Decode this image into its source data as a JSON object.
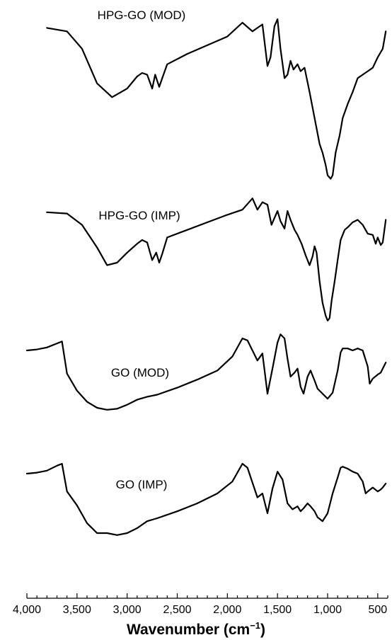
{
  "chart_data": {
    "type": "line",
    "title": "",
    "xlabel": "Wavenumber (cm",
    "xlabel_sup": "−1",
    "xlabel_close": ")",
    "ylabel": "",
    "x_reversed": true,
    "xlim": [
      4000,
      400
    ],
    "xticks": [
      {
        "value": 4000,
        "label": "4,000"
      },
      {
        "value": 3500,
        "label": "3,500"
      },
      {
        "value": 3000,
        "label": "3,000"
      },
      {
        "value": 2500,
        "label": "2,500"
      },
      {
        "value": 2000,
        "label": "2,000"
      },
      {
        "value": 1500,
        "label": "1,500"
      },
      {
        "value": 1000,
        "label": "1,000"
      },
      {
        "value": 500,
        "label": "500"
      }
    ],
    "y_units": "relative transmittance (offset traces, 0-100)",
    "grid": false,
    "legend": "none (series labeled directly above traces)",
    "series": [
      {
        "name": "HPG-GO (MOD)",
        "color": "#000000",
        "points": [
          [
            3800,
            97
          ],
          [
            3600,
            95
          ],
          [
            3450,
            85
          ],
          [
            3300,
            65
          ],
          [
            3150,
            57
          ],
          [
            3000,
            62
          ],
          [
            2900,
            69
          ],
          [
            2850,
            71
          ],
          [
            2800,
            70
          ],
          [
            2750,
            62
          ],
          [
            2720,
            70
          ],
          [
            2680,
            63
          ],
          [
            2650,
            68
          ],
          [
            2600,
            76
          ],
          [
            2400,
            82
          ],
          [
            2200,
            87
          ],
          [
            2000,
            92
          ],
          [
            1850,
            100
          ],
          [
            1750,
            95
          ],
          [
            1700,
            97
          ],
          [
            1650,
            99
          ],
          [
            1600,
            75
          ],
          [
            1570,
            80
          ],
          [
            1530,
            98
          ],
          [
            1500,
            102
          ],
          [
            1470,
            85
          ],
          [
            1430,
            68
          ],
          [
            1400,
            70
          ],
          [
            1370,
            78
          ],
          [
            1340,
            73
          ],
          [
            1300,
            76
          ],
          [
            1270,
            72
          ],
          [
            1230,
            74
          ],
          [
            1180,
            60
          ],
          [
            1120,
            42
          ],
          [
            1080,
            30
          ],
          [
            1050,
            25
          ],
          [
            1020,
            18
          ],
          [
            1000,
            12
          ],
          [
            970,
            10
          ],
          [
            950,
            12
          ],
          [
            920,
            25
          ],
          [
            880,
            35
          ],
          [
            850,
            45
          ],
          [
            800,
            53
          ],
          [
            750,
            60
          ],
          [
            700,
            68
          ],
          [
            650,
            70
          ],
          [
            600,
            72
          ],
          [
            550,
            74
          ],
          [
            500,
            80
          ],
          [
            450,
            85
          ],
          [
            420,
            95
          ]
        ]
      },
      {
        "name": "HPG-GO (IMP)",
        "color": "#000000",
        "points": [
          [
            3800,
            90
          ],
          [
            3600,
            89
          ],
          [
            3450,
            80
          ],
          [
            3300,
            62
          ],
          [
            3200,
            48
          ],
          [
            3100,
            50
          ],
          [
            3000,
            58
          ],
          [
            2900,
            65
          ],
          [
            2850,
            68
          ],
          [
            2800,
            66
          ],
          [
            2750,
            52
          ],
          [
            2710,
            58
          ],
          [
            2680,
            50
          ],
          [
            2650,
            57
          ],
          [
            2600,
            70
          ],
          [
            2400,
            76
          ],
          [
            2200,
            82
          ],
          [
            2000,
            88
          ],
          [
            1850,
            92
          ],
          [
            1750,
            101
          ],
          [
            1700,
            92
          ],
          [
            1650,
            98
          ],
          [
            1600,
            96
          ],
          [
            1560,
            80
          ],
          [
            1500,
            91
          ],
          [
            1470,
            83
          ],
          [
            1430,
            77
          ],
          [
            1400,
            91
          ],
          [
            1370,
            84
          ],
          [
            1330,
            76
          ],
          [
            1300,
            72
          ],
          [
            1260,
            65
          ],
          [
            1220,
            56
          ],
          [
            1180,
            48
          ],
          [
            1150,
            55
          ],
          [
            1130,
            63
          ],
          [
            1110,
            58
          ],
          [
            1080,
            35
          ],
          [
            1050,
            18
          ],
          [
            1020,
            8
          ],
          [
            1000,
            4
          ],
          [
            980,
            6
          ],
          [
            960,
            20
          ],
          [
            930,
            35
          ],
          [
            900,
            52
          ],
          [
            870,
            68
          ],
          [
            830,
            76
          ],
          [
            800,
            78
          ],
          [
            750,
            82
          ],
          [
            700,
            84
          ],
          [
            650,
            80
          ],
          [
            600,
            73
          ],
          [
            550,
            72
          ],
          [
            520,
            65
          ],
          [
            500,
            70
          ],
          [
            470,
            64
          ],
          [
            450,
            66
          ],
          [
            420,
            84
          ]
        ]
      },
      {
        "name": "GO (MOD)",
        "color": "#000000",
        "points": [
          [
            4000,
            88
          ],
          [
            3900,
            89
          ],
          [
            3800,
            91
          ],
          [
            3700,
            95
          ],
          [
            3650,
            97
          ],
          [
            3600,
            65
          ],
          [
            3500,
            48
          ],
          [
            3400,
            37
          ],
          [
            3300,
            31
          ],
          [
            3200,
            29
          ],
          [
            3100,
            30
          ],
          [
            3000,
            34
          ],
          [
            2900,
            39
          ],
          [
            2800,
            42
          ],
          [
            2700,
            44
          ],
          [
            2500,
            51
          ],
          [
            2300,
            59
          ],
          [
            2100,
            68
          ],
          [
            1950,
            82
          ],
          [
            1850,
            100
          ],
          [
            1800,
            98
          ],
          [
            1700,
            78
          ],
          [
            1650,
            85
          ],
          [
            1600,
            45
          ],
          [
            1550,
            70
          ],
          [
            1500,
            96
          ],
          [
            1470,
            104
          ],
          [
            1430,
            100
          ],
          [
            1400,
            80
          ],
          [
            1370,
            62
          ],
          [
            1330,
            66
          ],
          [
            1300,
            70
          ],
          [
            1270,
            52
          ],
          [
            1240,
            45
          ],
          [
            1200,
            62
          ],
          [
            1170,
            68
          ],
          [
            1130,
            58
          ],
          [
            1100,
            50
          ],
          [
            1050,
            45
          ],
          [
            1000,
            40
          ],
          [
            950,
            46
          ],
          [
            900,
            68
          ],
          [
            870,
            86
          ],
          [
            850,
            90
          ],
          [
            800,
            90
          ],
          [
            750,
            88
          ],
          [
            700,
            90
          ],
          [
            650,
            88
          ],
          [
            600,
            72
          ],
          [
            580,
            55
          ],
          [
            550,
            60
          ],
          [
            500,
            64
          ],
          [
            470,
            66
          ],
          [
            450,
            70
          ],
          [
            420,
            76
          ]
        ]
      },
      {
        "name": "GO (IMP)",
        "color": "#000000",
        "points": [
          [
            4000,
            90
          ],
          [
            3900,
            91
          ],
          [
            3800,
            93
          ],
          [
            3700,
            98
          ],
          [
            3650,
            100
          ],
          [
            3600,
            72
          ],
          [
            3500,
            58
          ],
          [
            3400,
            40
          ],
          [
            3300,
            30
          ],
          [
            3200,
            30
          ],
          [
            3100,
            28
          ],
          [
            3000,
            30
          ],
          [
            2900,
            35
          ],
          [
            2800,
            42
          ],
          [
            2700,
            45
          ],
          [
            2500,
            52
          ],
          [
            2300,
            60
          ],
          [
            2100,
            70
          ],
          [
            1950,
            82
          ],
          [
            1850,
            100
          ],
          [
            1800,
            96
          ],
          [
            1700,
            66
          ],
          [
            1650,
            70
          ],
          [
            1600,
            50
          ],
          [
            1550,
            75
          ],
          [
            1500,
            92
          ],
          [
            1450,
            84
          ],
          [
            1400,
            60
          ],
          [
            1350,
            54
          ],
          [
            1300,
            57
          ],
          [
            1270,
            52
          ],
          [
            1240,
            55
          ],
          [
            1200,
            60
          ],
          [
            1170,
            57
          ],
          [
            1130,
            52
          ],
          [
            1100,
            46
          ],
          [
            1050,
            42
          ],
          [
            1000,
            50
          ],
          [
            950,
            70
          ],
          [
            900,
            86
          ],
          [
            870,
            96
          ],
          [
            850,
            97
          ],
          [
            800,
            95
          ],
          [
            750,
            92
          ],
          [
            700,
            90
          ],
          [
            650,
            82
          ],
          [
            620,
            70
          ],
          [
            600,
            72
          ],
          [
            550,
            76
          ],
          [
            500,
            72
          ],
          [
            470,
            74
          ],
          [
            450,
            76
          ],
          [
            420,
            80
          ]
        ]
      }
    ]
  }
}
